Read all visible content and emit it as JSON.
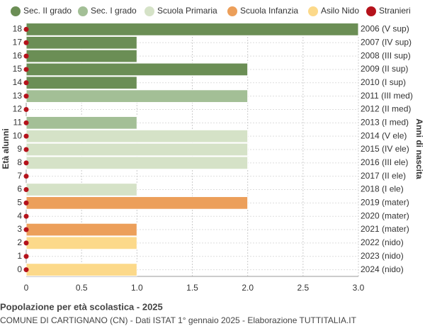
{
  "chart_data": {
    "type": "bar",
    "orientation": "horizontal",
    "title": "Popolazione per età scolastica - 2025",
    "subtitle": "COMUNE DI CARTIGNANO (CN) - Dati ISTAT 1° gennaio 2025 - Elaborazione TUTTITALIA.IT",
    "y_label": "Età alunni",
    "y2_label": "Anni di nascita",
    "categories": [
      18,
      17,
      16,
      15,
      14,
      13,
      12,
      11,
      10,
      9,
      8,
      7,
      6,
      5,
      4,
      3,
      2,
      1,
      0
    ],
    "year_labels": [
      "2006 (V sup)",
      "2007 (IV sup)",
      "2008 (III sup)",
      "2009 (II sup)",
      "2010 (I sup)",
      "2011 (III med)",
      "2012 (II med)",
      "2013 (I med)",
      "2014 (V ele)",
      "2015 (IV ele)",
      "2016 (III ele)",
      "2017 (II ele)",
      "2018 (I ele)",
      "2019 (mater)",
      "2020 (mater)",
      "2021 (mater)",
      "2022 (nido)",
      "2023 (nido)",
      "2024 (nido)"
    ],
    "series": [
      {
        "name": "Sec. II grado",
        "color": "#6b8e55",
        "values": [
          3,
          1,
          1,
          2,
          1,
          null,
          null,
          null,
          null,
          null,
          null,
          null,
          null,
          null,
          null,
          null,
          null,
          null,
          null
        ]
      },
      {
        "name": "Sec. I grado",
        "color": "#a3bf96",
        "values": [
          null,
          null,
          null,
          null,
          null,
          2,
          0,
          1,
          null,
          null,
          null,
          null,
          null,
          null,
          null,
          null,
          null,
          null,
          null
        ]
      },
      {
        "name": "Scuola Primaria",
        "color": "#d5e2c7",
        "values": [
          null,
          null,
          null,
          null,
          null,
          null,
          null,
          null,
          2,
          2,
          2,
          0,
          1,
          null,
          null,
          null,
          null,
          null,
          null
        ]
      },
      {
        "name": "Scuola Infanzia",
        "color": "#ec9f5a",
        "values": [
          null,
          null,
          null,
          null,
          null,
          null,
          null,
          null,
          null,
          null,
          null,
          null,
          null,
          2,
          0,
          1,
          null,
          null,
          null
        ]
      },
      {
        "name": "Asilo Nido",
        "color": "#fcd98a",
        "values": [
          null,
          null,
          null,
          null,
          null,
          null,
          null,
          null,
          null,
          null,
          null,
          null,
          null,
          null,
          null,
          null,
          1,
          0,
          1
        ]
      },
      {
        "name": "Stranieri",
        "color": "#b5121b",
        "marker": "dot",
        "values": [
          0,
          0,
          0,
          0,
          0,
          0,
          0,
          0,
          0,
          0,
          0,
          0,
          0,
          0,
          0,
          0,
          0,
          0,
          0
        ]
      }
    ],
    "xlim": [
      0,
      3
    ],
    "xticks": [
      0,
      0.5,
      {
        "value": 1,
        "label": "1.0"
      },
      1.5,
      {
        "value": 2,
        "label": "2.0"
      },
      2.5,
      {
        "value": 3,
        "label": "3.0"
      }
    ],
    "grid": true
  }
}
